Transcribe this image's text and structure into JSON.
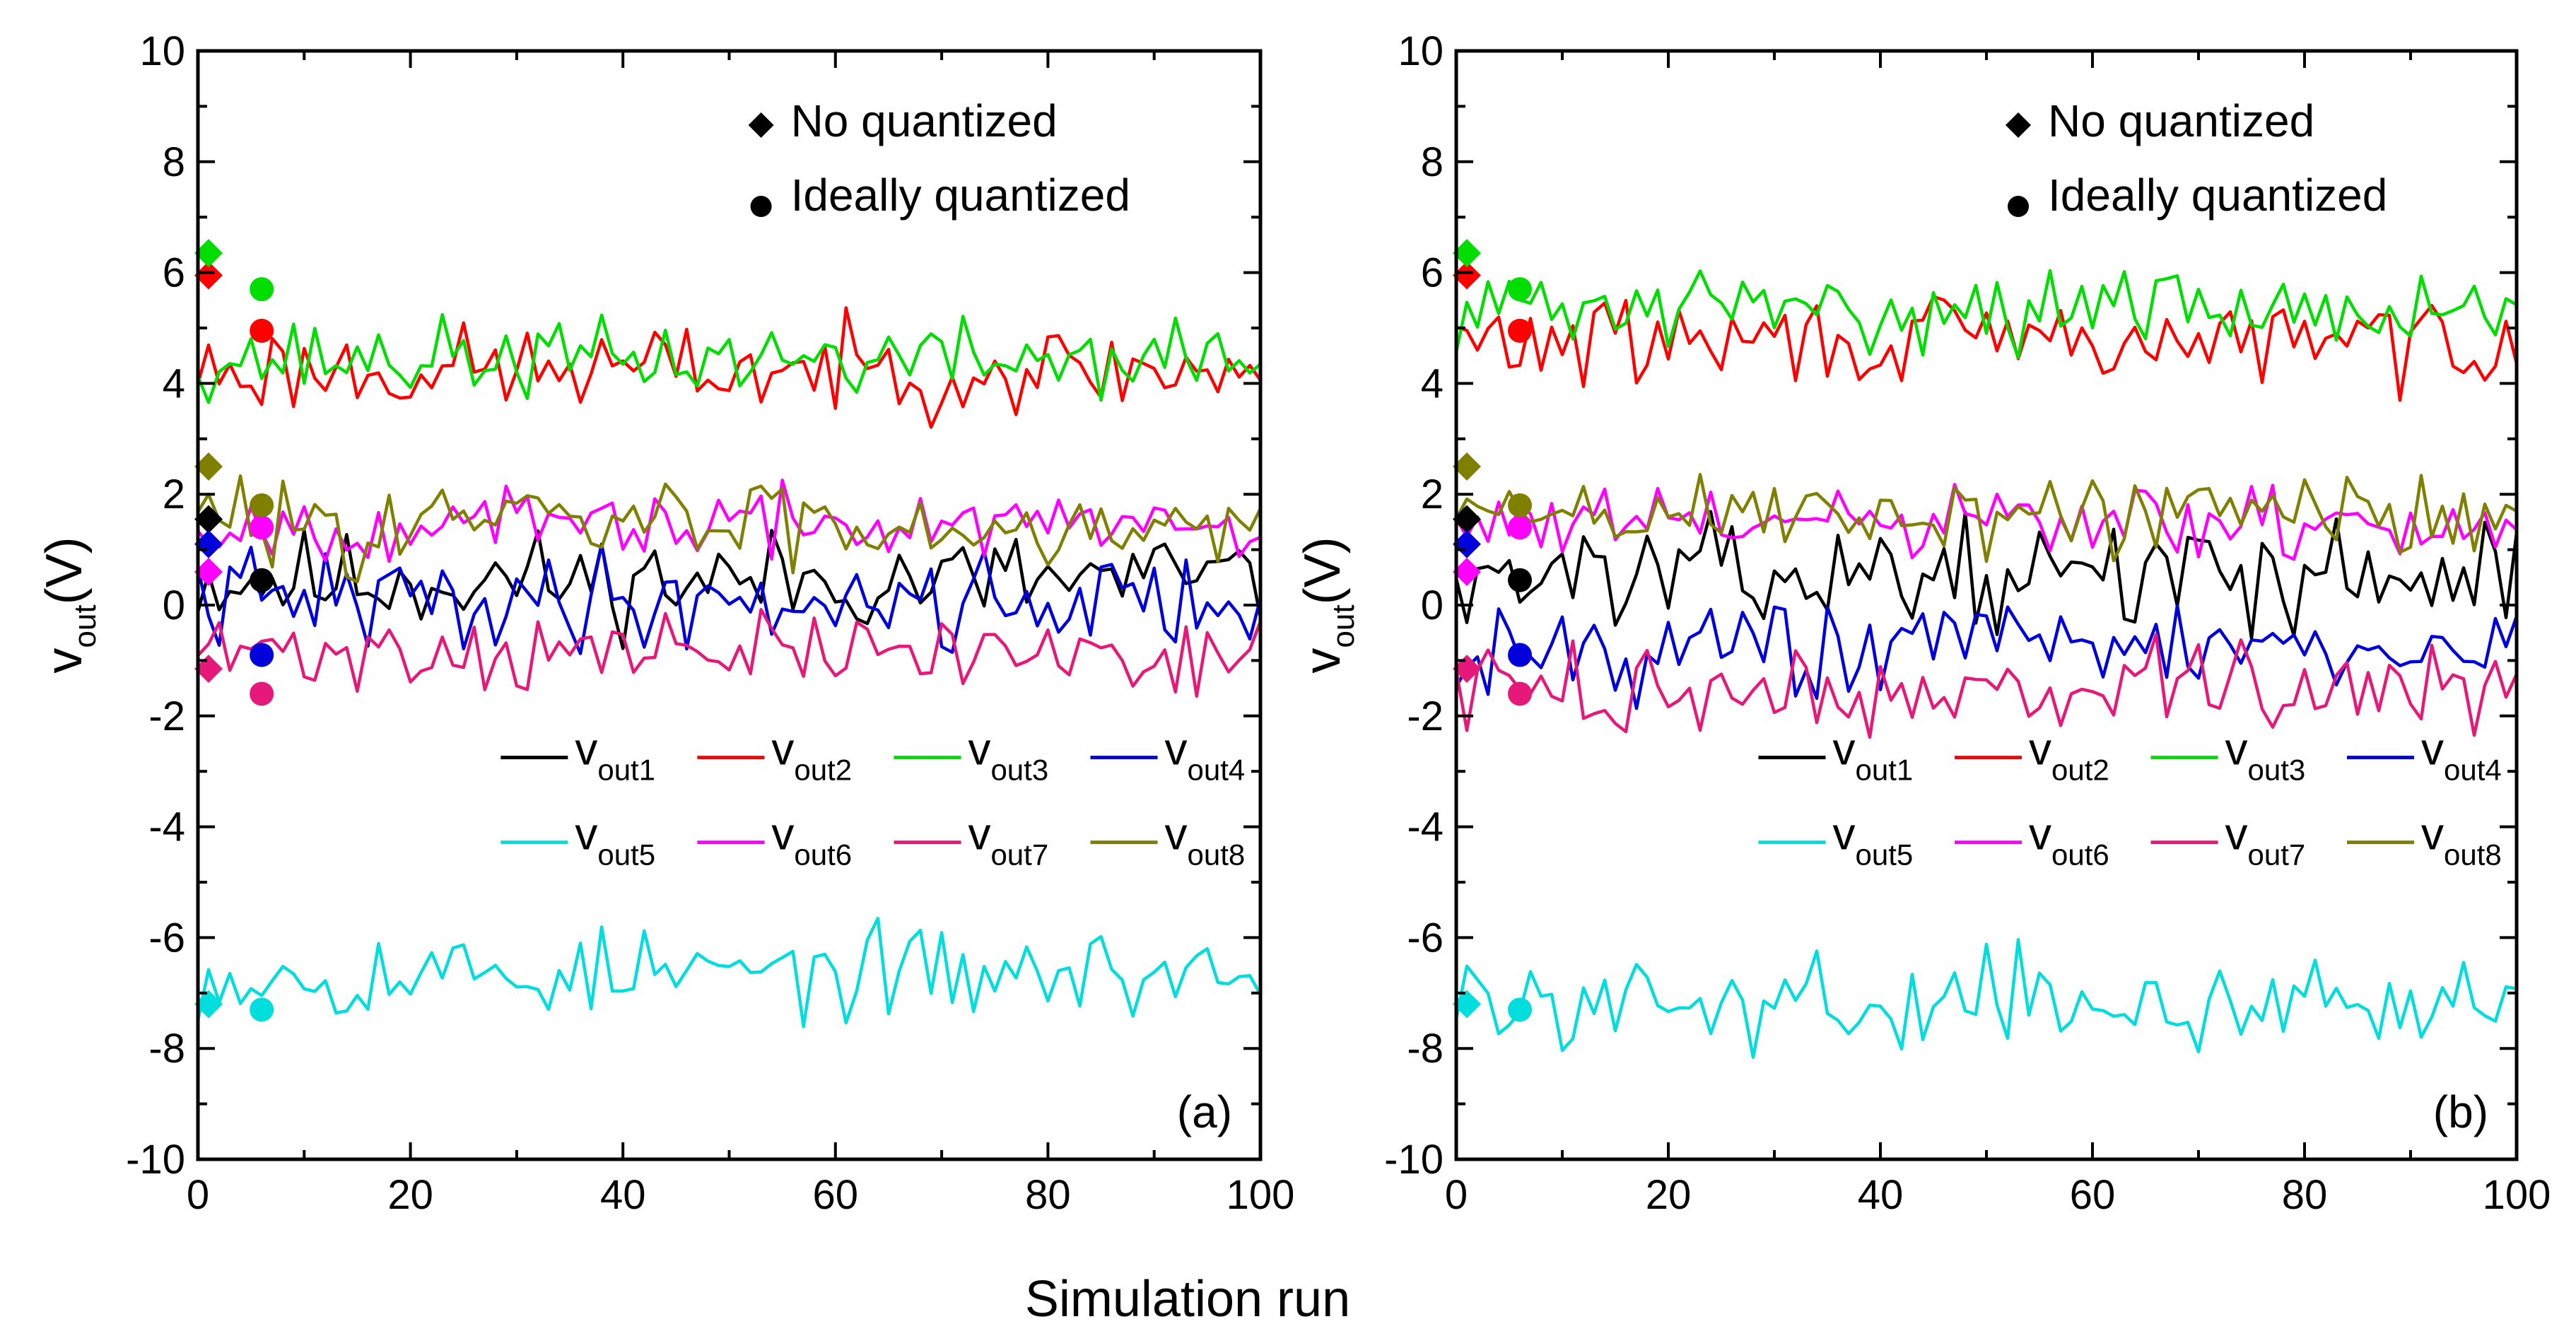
{
  "figure": {
    "xlabel": "Simulation run"
  },
  "chart_data": [
    {
      "type": "line",
      "panel_label": "(a)",
      "xlim": [
        0,
        100
      ],
      "ylim": [
        -10,
        10
      ],
      "x_ticks": [
        0,
        20,
        40,
        60,
        80,
        100
      ],
      "y_ticks": [
        -10,
        -8,
        -6,
        -4,
        -2,
        0,
        2,
        4,
        6,
        8,
        10
      ],
      "ylabel_main": "v",
      "ylabel_sub": "out",
      "ylabel_unit": "(V)",
      "marker_legend": [
        {
          "marker": "diamond",
          "label": "No quantized"
        },
        {
          "marker": "circle",
          "label": "Ideally quantized"
        }
      ],
      "series": [
        {
          "name": "v",
          "sub": "out1",
          "color": "#000000",
          "mean": 0.45,
          "amp": 0.45,
          "seed": 11,
          "diamond": [
            1,
            1.55
          ],
          "circle": [
            6,
            0.45
          ]
        },
        {
          "name": "v",
          "sub": "out2",
          "color": "#ff0000",
          "mean": 4.25,
          "amp": 0.4,
          "seed": 23,
          "diamond": [
            1,
            5.95
          ],
          "circle": [
            6,
            4.95
          ]
        },
        {
          "name": "v",
          "sub": "out3",
          "color": "#00dd00",
          "mean": 4.45,
          "amp": 0.35,
          "seed": 37,
          "diamond": [
            1,
            6.35
          ],
          "circle": [
            6,
            5.7
          ]
        },
        {
          "name": "v",
          "sub": "out4",
          "color": "#0000dd",
          "mean": 0.1,
          "amp": 0.45,
          "seed": 41,
          "diamond": [
            1,
            1.1
          ],
          "circle": [
            6,
            -0.9
          ]
        },
        {
          "name": "v",
          "sub": "out5",
          "color": "#00dddd",
          "mean": -6.65,
          "amp": 0.4,
          "seed": 53,
          "diamond": [
            1,
            -7.2
          ],
          "circle": [
            6,
            -7.3
          ]
        },
        {
          "name": "v",
          "sub": "out6",
          "color": "#ff00ff",
          "mean": 1.45,
          "amp": 0.3,
          "seed": 67,
          "diamond": [
            1,
            0.6
          ],
          "circle": [
            6,
            1.4
          ]
        },
        {
          "name": "v",
          "sub": "out7",
          "color": "#e6197a",
          "mean": -0.85,
          "amp": 0.35,
          "seed": 71,
          "diamond": [
            1,
            -1.15
          ],
          "circle": [
            6,
            -1.6
          ]
        },
        {
          "name": "v",
          "sub": "out8",
          "color": "#808000",
          "mean": 1.5,
          "amp": 0.4,
          "seed": 83,
          "diamond": [
            1,
            2.5
          ],
          "circle": [
            6,
            1.8
          ]
        }
      ]
    },
    {
      "type": "line",
      "panel_label": "(b)",
      "xlim": [
        0,
        100
      ],
      "ylim": [
        -10,
        10
      ],
      "x_ticks": [
        0,
        20,
        40,
        60,
        80,
        100
      ],
      "y_ticks": [
        -10,
        -8,
        -6,
        -4,
        -2,
        0,
        2,
        4,
        6,
        8,
        10
      ],
      "ylabel_main": "v",
      "ylabel_sub": "out",
      "ylabel_unit": "(V)",
      "marker_legend": [
        {
          "marker": "diamond",
          "label": "No quantized"
        },
        {
          "marker": "circle",
          "label": "Ideally quantized"
        }
      ],
      "series": [
        {
          "name": "v",
          "sub": "out1",
          "color": "#000000",
          "mean": 0.55,
          "amp": 0.45,
          "seed": 13,
          "diamond": [
            1,
            1.55
          ],
          "circle": [
            6,
            0.45
          ]
        },
        {
          "name": "v",
          "sub": "out2",
          "color": "#ff0000",
          "mean": 4.75,
          "amp": 0.4,
          "seed": 29,
          "diamond": [
            1,
            5.95
          ],
          "circle": [
            6,
            4.95
          ]
        },
        {
          "name": "v",
          "sub": "out3",
          "color": "#00dd00",
          "mean": 5.35,
          "amp": 0.35,
          "seed": 31,
          "diamond": [
            1,
            6.35
          ],
          "circle": [
            6,
            5.7
          ]
        },
        {
          "name": "v",
          "sub": "out4",
          "color": "#0000dd",
          "mean": -0.75,
          "amp": 0.45,
          "seed": 43,
          "diamond": [
            1,
            1.1
          ],
          "circle": [
            6,
            -0.9
          ]
        },
        {
          "name": "v",
          "sub": "out5",
          "color": "#00dddd",
          "mean": -7.15,
          "amp": 0.4,
          "seed": 59,
          "diamond": [
            1,
            -7.2
          ],
          "circle": [
            6,
            -7.3
          ]
        },
        {
          "name": "v",
          "sub": "out6",
          "color": "#ff00ff",
          "mean": 1.45,
          "amp": 0.35,
          "seed": 61,
          "diamond": [
            1,
            0.6
          ],
          "circle": [
            6,
            1.4
          ]
        },
        {
          "name": "v",
          "sub": "out7",
          "color": "#e6197a",
          "mean": -1.55,
          "amp": 0.4,
          "seed": 73,
          "diamond": [
            1,
            -1.15
          ],
          "circle": [
            6,
            -1.6
          ]
        },
        {
          "name": "v",
          "sub": "out8",
          "color": "#808000",
          "mean": 1.65,
          "amp": 0.4,
          "seed": 89,
          "diamond": [
            1,
            2.5
          ],
          "circle": [
            6,
            1.8
          ]
        }
      ]
    }
  ]
}
